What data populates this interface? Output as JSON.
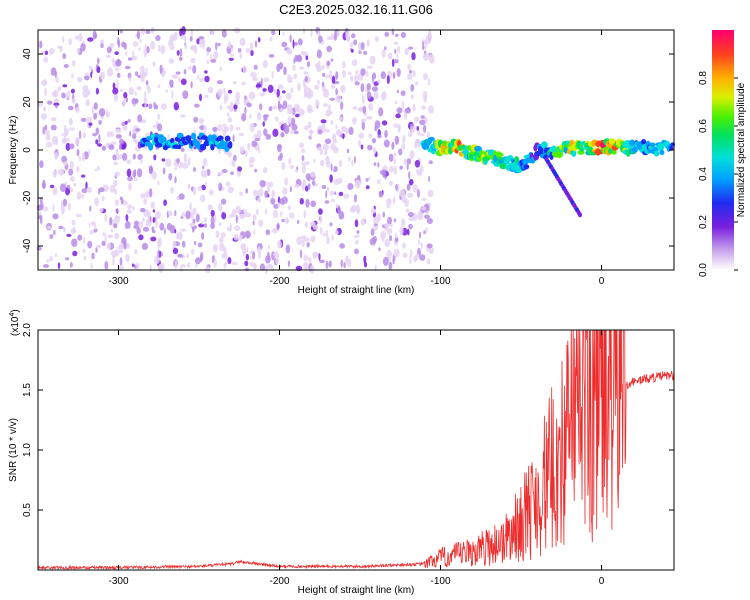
{
  "chart_data": [
    {
      "type": "heatmap",
      "title": "C2E3.2025.032.16.11.G06",
      "xlabel": "Height of straight line (km)",
      "ylabel": "Frequency (Hz)",
      "xlim": [
        -350,
        45
      ],
      "ylim": [
        -50,
        50
      ],
      "x_ticks": [
        -300,
        -200,
        -100,
        0
      ],
      "y_ticks": [
        -40,
        -20,
        0,
        20,
        40
      ],
      "colorbar": {
        "label": "Normalized spectral amplitude",
        "range": [
          0,
          1
        ],
        "ticks": [
          "0.0",
          "0.2",
          "0.4",
          "0.6",
          "0.8"
        ],
        "tick_values": [
          0.0,
          0.2,
          0.4,
          0.6,
          0.8
        ]
      },
      "noise_region_x": [
        -350,
        -105
      ],
      "signal_track": {
        "x": [
          -285,
          -270,
          -255,
          -240,
          -230,
          -110,
          -100,
          -90,
          -80,
          -70,
          -60,
          -50,
          -40,
          -30,
          -20,
          -10,
          0,
          10,
          20,
          30,
          45
        ],
        "frequency": [
          4,
          3,
          4,
          3,
          3,
          3,
          1,
          1,
          -1,
          -3,
          -5,
          -7,
          0,
          0,
          1,
          1,
          1,
          1,
          1,
          1,
          1
        ],
        "amplitude": [
          0.45,
          0.5,
          0.45,
          0.5,
          0.4,
          0.5,
          0.8,
          0.9,
          0.7,
          0.75,
          0.6,
          0.5,
          0.4,
          0.6,
          0.8,
          0.7,
          0.95,
          0.9,
          0.6,
          0.5,
          0.5
        ]
      }
    },
    {
      "type": "line",
      "xlabel": "Height of straight line (km)",
      "ylabel": "SNR (10 * v/v)",
      "scale_label": "(x10",
      "scale_exponent": "4",
      "xlim": [
        -350,
        45
      ],
      "ylim": [
        0,
        2.0
      ],
      "x_ticks": [
        -300,
        -200,
        -100,
        0
      ],
      "y_ticks": [
        "0.5",
        "1.0",
        "1.5",
        "2.0"
      ],
      "y_tick_values": [
        0.5,
        1.0,
        1.5,
        2.0
      ],
      "color": "#ee2c2c",
      "envelope": {
        "x": [
          -350,
          -300,
          -250,
          -230,
          -225,
          -200,
          -150,
          -110,
          -100,
          -80,
          -70,
          -60,
          -50,
          -40,
          -30,
          -20,
          -15,
          -10,
          0,
          10,
          20,
          30,
          40,
          45
        ],
        "y": [
          0.02,
          0.02,
          0.03,
          0.05,
          0.07,
          0.03,
          0.03,
          0.05,
          0.1,
          0.15,
          0.2,
          0.25,
          0.4,
          0.6,
          0.85,
          1.1,
          1.3,
          1.35,
          1.45,
          1.52,
          1.57,
          1.6,
          1.62,
          1.62
        ]
      }
    }
  ]
}
